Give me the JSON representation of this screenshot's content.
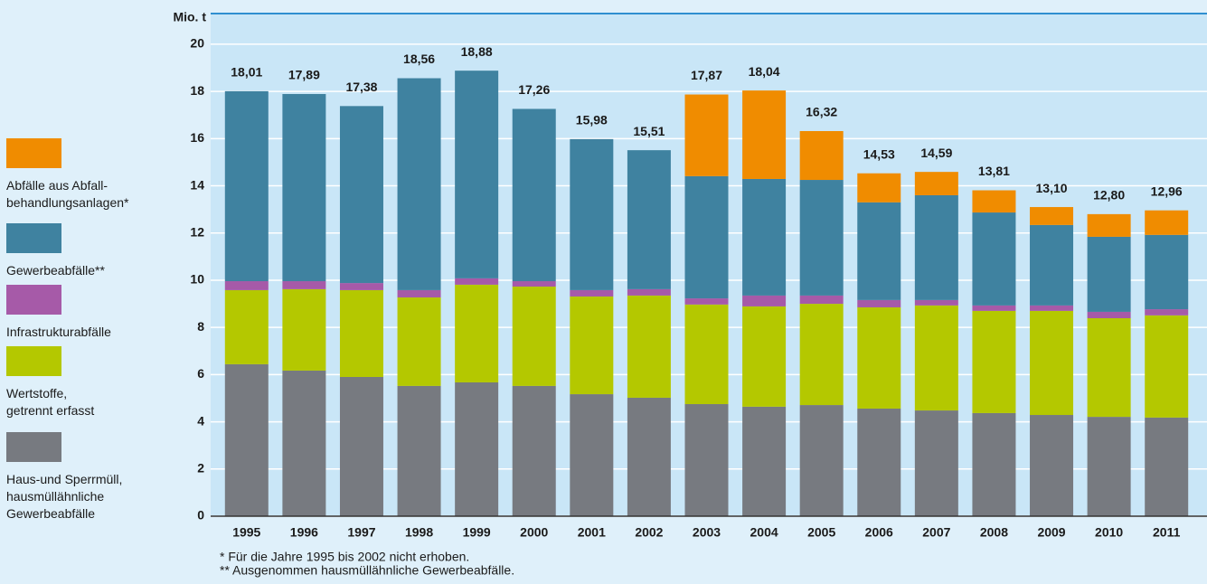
{
  "chart_data": {
    "type": "stacked_bar",
    "y_axis_label": "Mio. t",
    "categories": [
      "1995",
      "1996",
      "1997",
      "1998",
      "1999",
      "2000",
      "2001",
      "2002",
      "2003",
      "2004",
      "2005",
      "2006",
      "2007",
      "2008",
      "2009",
      "2010",
      "2011"
    ],
    "series": [
      {
        "name": "Haus-und Sperrmüll,\nhausmüllähnliche\nGewerbeabfälle",
        "color": "#777a80",
        "values": [
          6.44,
          6.17,
          5.9,
          5.52,
          5.67,
          5.52,
          5.17,
          5.02,
          4.75,
          4.64,
          4.71,
          4.56,
          4.48,
          4.37,
          4.29,
          4.21,
          4.18
        ]
      },
      {
        "name": "Wertstoffe,\ngetrennt erfasst",
        "color": "#b4c800",
        "values": [
          3.14,
          3.45,
          3.68,
          3.75,
          4.14,
          4.21,
          4.14,
          4.33,
          4.22,
          4.25,
          4.29,
          4.29,
          4.45,
          4.33,
          4.41,
          4.18,
          4.33
        ]
      },
      {
        "name": "Infrastrukturabfälle",
        "color": "#a65aa8",
        "values": [
          0.38,
          0.34,
          0.3,
          0.31,
          0.27,
          0.23,
          0.27,
          0.27,
          0.26,
          0.46,
          0.35,
          0.31,
          0.23,
          0.23,
          0.23,
          0.27,
          0.26
        ]
      },
      {
        "name": "Gewerbeabfälle**",
        "color": "#3f82a0",
        "values": [
          8.05,
          7.93,
          7.5,
          8.98,
          8.8,
          7.3,
          6.4,
          5.89,
          5.18,
          4.94,
          4.9,
          4.14,
          4.44,
          3.94,
          3.41,
          3.18,
          3.15
        ]
      },
      {
        "name": "Abfälle aus Abfall-\nbehandlungsanlagen*",
        "color": "#f08c00",
        "values": [
          null,
          null,
          null,
          null,
          null,
          null,
          null,
          null,
          3.46,
          3.75,
          2.07,
          1.23,
          0.99,
          0.94,
          0.76,
          0.96,
          1.04
        ]
      }
    ],
    "totals": [
      18.01,
      17.89,
      17.38,
      18.56,
      18.88,
      17.26,
      15.98,
      15.51,
      17.87,
      18.04,
      16.32,
      14.53,
      14.59,
      13.81,
      13.1,
      12.8,
      12.96
    ],
    "total_labels": [
      "18,01",
      "17,89",
      "17,38",
      "18,56",
      "18,88",
      "17,26",
      "15,98",
      "15,51",
      "17,87",
      "18,04",
      "16,32",
      "14,53",
      "14,59",
      "13,81",
      "13,10",
      "12,80",
      "12,96"
    ],
    "ylim": [
      0,
      21.3
    ],
    "yticks": [
      0,
      2,
      4,
      6,
      8,
      10,
      12,
      14,
      16,
      18,
      20
    ],
    "grid": true,
    "footnotes": [
      "*   Für die Jahre 1995 bis 2002 nicht erhoben.",
      "** Ausgenommen hausmüllähnliche Gewerbeabfälle."
    ]
  }
}
